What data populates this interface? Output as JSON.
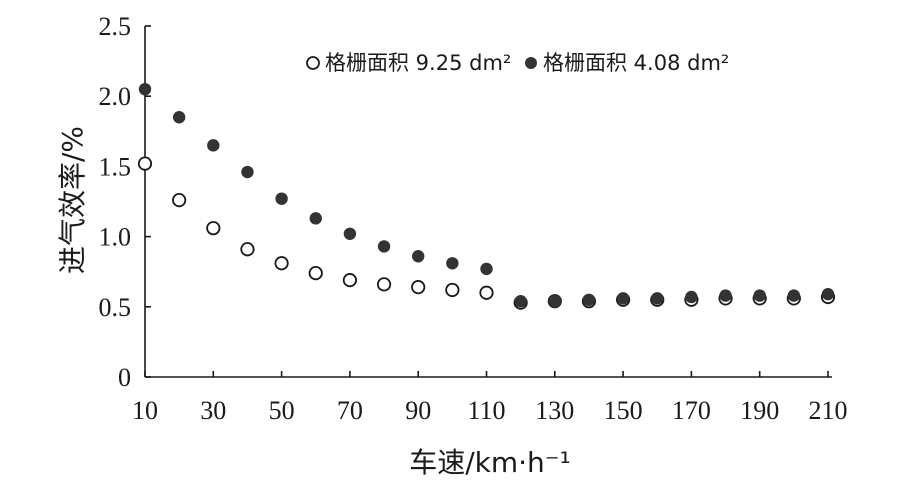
{
  "chart_data": {
    "type": "scatter",
    "xlabel": "车速/km·h⁻¹",
    "ylabel": "进气效率/%",
    "xlim": [
      10,
      210
    ],
    "ylim": [
      0,
      2.5
    ],
    "x_ticks": [
      10,
      30,
      50,
      70,
      90,
      110,
      130,
      150,
      170,
      190,
      210
    ],
    "y_ticks": [
      0,
      0.5,
      1.0,
      1.5,
      2.0,
      2.5
    ],
    "y_tick_labels": [
      "0",
      "0.5",
      "1.0",
      "1.5",
      "2.0",
      "2.5"
    ],
    "grid": false,
    "legend_position": "top-center",
    "series": [
      {
        "name": "格栅面积 9.25 dm²",
        "marker": "hollow-circle",
        "color": "#1a1a1a",
        "x": [
          10,
          20,
          30,
          40,
          50,
          60,
          70,
          80,
          90,
          100,
          110,
          120,
          130,
          140,
          150,
          160,
          170,
          180,
          190,
          200,
          210
        ],
        "y": [
          1.52,
          1.26,
          1.06,
          0.91,
          0.81,
          0.74,
          0.69,
          0.66,
          0.64,
          0.62,
          0.6,
          0.53,
          0.54,
          0.54,
          0.55,
          0.55,
          0.55,
          0.56,
          0.56,
          0.56,
          0.57
        ]
      },
      {
        "name": "格栅面积 4.08 dm²",
        "marker": "filled-circle",
        "color": "#333333",
        "x": [
          10,
          20,
          30,
          40,
          50,
          60,
          70,
          80,
          90,
          100,
          110,
          120,
          130,
          140,
          150,
          160,
          170,
          180,
          190,
          200,
          210
        ],
        "y": [
          2.05,
          1.85,
          1.65,
          1.46,
          1.27,
          1.13,
          1.02,
          0.93,
          0.86,
          0.81,
          0.77,
          0.54,
          0.54,
          0.55,
          0.56,
          0.56,
          0.57,
          0.58,
          0.58,
          0.58,
          0.59
        ]
      }
    ]
  }
}
